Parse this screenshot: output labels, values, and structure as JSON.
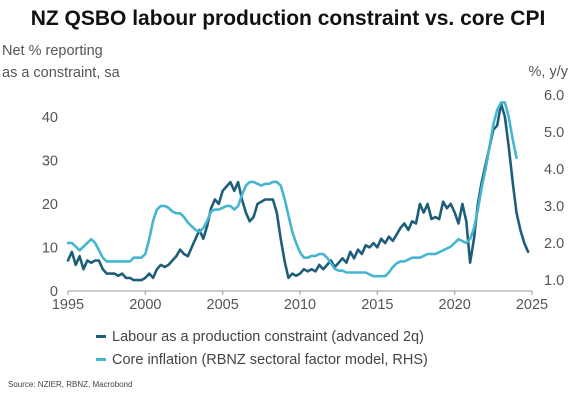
{
  "chart_data": {
    "type": "line",
    "title": "NZ QSBO labour production constraint vs. core CPI",
    "ylabel_left": [
      "Net % reporting",
      "as a constraint, sa"
    ],
    "ylabel_right": "%, y/y",
    "x_ticks": [
      "1995",
      "2000",
      "2005",
      "2010",
      "2015",
      "2020",
      "2025"
    ],
    "y_left_ticks": [
      "0",
      "10",
      "20",
      "30",
      "40"
    ],
    "y_right_ticks": [
      "1.0",
      "2.0",
      "3.0",
      "4.0",
      "5.0",
      "6.0"
    ],
    "xlim": [
      1995,
      2025
    ],
    "ylim_left": [
      0,
      45
    ],
    "ylim_right": [
      0.7,
      6.0
    ],
    "grid": false,
    "legend_position": "bottom",
    "series": [
      {
        "name": "Labour as a production constraint (advanced 2q)",
        "color": "#1f5e7a",
        "axis": "left",
        "points": [
          [
            1995.0,
            7
          ],
          [
            1995.25,
            9
          ],
          [
            1995.5,
            6
          ],
          [
            1995.75,
            8
          ],
          [
            1996.0,
            5
          ],
          [
            1996.25,
            7
          ],
          [
            1996.5,
            6.5
          ],
          [
            1996.75,
            7
          ],
          [
            1997.0,
            7
          ],
          [
            1997.25,
            5
          ],
          [
            1997.5,
            4
          ],
          [
            1997.75,
            4
          ],
          [
            1998.0,
            4
          ],
          [
            1998.25,
            3.5
          ],
          [
            1998.5,
            4
          ],
          [
            1998.75,
            3
          ],
          [
            1999.0,
            3
          ],
          [
            1999.25,
            2.5
          ],
          [
            1999.5,
            2.5
          ],
          [
            1999.75,
            2.5
          ],
          [
            2000.0,
            3
          ],
          [
            2000.25,
            4
          ],
          [
            2000.5,
            3
          ],
          [
            2000.75,
            5
          ],
          [
            2001.0,
            6
          ],
          [
            2001.25,
            5.5
          ],
          [
            2001.5,
            6
          ],
          [
            2001.75,
            7
          ],
          [
            2002.0,
            8
          ],
          [
            2002.25,
            9.5
          ],
          [
            2002.5,
            8.5
          ],
          [
            2002.75,
            8
          ],
          [
            2003.0,
            10
          ],
          [
            2003.25,
            12
          ],
          [
            2003.5,
            14
          ],
          [
            2003.75,
            12
          ],
          [
            2004.0,
            15
          ],
          [
            2004.25,
            19
          ],
          [
            2004.5,
            21
          ],
          [
            2004.75,
            20
          ],
          [
            2005.0,
            23
          ],
          [
            2005.25,
            24
          ],
          [
            2005.5,
            25
          ],
          [
            2005.75,
            23
          ],
          [
            2006.0,
            25
          ],
          [
            2006.25,
            21
          ],
          [
            2006.5,
            18
          ],
          [
            2006.75,
            16
          ],
          [
            2007.0,
            17
          ],
          [
            2007.25,
            20
          ],
          [
            2007.5,
            20.5
          ],
          [
            2007.75,
            21
          ],
          [
            2008.0,
            21
          ],
          [
            2008.25,
            21
          ],
          [
            2008.5,
            18
          ],
          [
            2008.75,
            12
          ],
          [
            2009.0,
            7
          ],
          [
            2009.25,
            3
          ],
          [
            2009.5,
            4
          ],
          [
            2009.75,
            3.5
          ],
          [
            2010.0,
            4
          ],
          [
            2010.25,
            5
          ],
          [
            2010.5,
            4.5
          ],
          [
            2010.75,
            5
          ],
          [
            2011.0,
            4.5
          ],
          [
            2011.25,
            6
          ],
          [
            2011.5,
            5
          ],
          [
            2011.75,
            6
          ],
          [
            2012.0,
            7
          ],
          [
            2012.25,
            5.5
          ],
          [
            2012.5,
            6.5
          ],
          [
            2012.75,
            7.5
          ],
          [
            2013.0,
            6.5
          ],
          [
            2013.25,
            9
          ],
          [
            2013.5,
            7.5
          ],
          [
            2013.75,
            9.5
          ],
          [
            2014.0,
            8.5
          ],
          [
            2014.25,
            10.5
          ],
          [
            2014.5,
            10
          ],
          [
            2014.75,
            11
          ],
          [
            2015.0,
            10
          ],
          [
            2015.25,
            12
          ],
          [
            2015.5,
            11
          ],
          [
            2015.75,
            12.5
          ],
          [
            2016.0,
            11.5
          ],
          [
            2016.25,
            13
          ],
          [
            2016.5,
            14.5
          ],
          [
            2016.75,
            15.5
          ],
          [
            2017.0,
            14
          ],
          [
            2017.25,
            16
          ],
          [
            2017.5,
            15.5
          ],
          [
            2017.75,
            20
          ],
          [
            2018.0,
            18
          ],
          [
            2018.25,
            20
          ],
          [
            2018.5,
            16.5
          ],
          [
            2018.75,
            17
          ],
          [
            2019.0,
            16.5
          ],
          [
            2019.25,
            20.5
          ],
          [
            2019.5,
            19
          ],
          [
            2019.75,
            20
          ],
          [
            2020.0,
            18
          ],
          [
            2020.25,
            15.5
          ],
          [
            2020.5,
            20
          ],
          [
            2020.75,
            16
          ],
          [
            2021.0,
            6.5
          ],
          [
            2021.25,
            12
          ],
          [
            2021.5,
            20
          ],
          [
            2021.75,
            25
          ],
          [
            2022.0,
            29
          ],
          [
            2022.25,
            33
          ],
          [
            2022.5,
            37
          ],
          [
            2022.75,
            38
          ],
          [
            2023.0,
            43
          ],
          [
            2023.25,
            40
          ],
          [
            2023.5,
            33
          ],
          [
            2023.75,
            25
          ],
          [
            2024.0,
            18
          ],
          [
            2024.25,
            14
          ],
          [
            2024.5,
            11
          ],
          [
            2024.75,
            9
          ]
        ]
      },
      {
        "name": "Core inflation (RBNZ sectoral factor model, RHS)",
        "color": "#46b5cf",
        "axis": "right",
        "points": [
          [
            1995.0,
            2.0
          ],
          [
            1995.25,
            2.0
          ],
          [
            1995.5,
            1.9
          ],
          [
            1995.75,
            1.8
          ],
          [
            1996.0,
            1.9
          ],
          [
            1996.25,
            2.0
          ],
          [
            1996.5,
            2.1
          ],
          [
            1996.75,
            2.0
          ],
          [
            1997.0,
            1.8
          ],
          [
            1997.25,
            1.6
          ],
          [
            1997.5,
            1.5
          ],
          [
            1997.75,
            1.5
          ],
          [
            1998.0,
            1.5
          ],
          [
            1998.25,
            1.5
          ],
          [
            1998.5,
            1.5
          ],
          [
            1998.75,
            1.5
          ],
          [
            1999.0,
            1.5
          ],
          [
            1999.25,
            1.6
          ],
          [
            1999.5,
            1.6
          ],
          [
            1999.75,
            1.6
          ],
          [
            2000.0,
            1.7
          ],
          [
            2000.25,
            2.1
          ],
          [
            2000.5,
            2.6
          ],
          [
            2000.75,
            2.9
          ],
          [
            2001.0,
            3.0
          ],
          [
            2001.25,
            3.0
          ],
          [
            2001.5,
            2.95
          ],
          [
            2001.75,
            2.85
          ],
          [
            2002.0,
            2.8
          ],
          [
            2002.25,
            2.8
          ],
          [
            2002.5,
            2.7
          ],
          [
            2002.75,
            2.55
          ],
          [
            2003.0,
            2.45
          ],
          [
            2003.25,
            2.35
          ],
          [
            2003.5,
            2.3
          ],
          [
            2003.75,
            2.4
          ],
          [
            2004.0,
            2.6
          ],
          [
            2004.25,
            2.85
          ],
          [
            2004.5,
            2.9
          ],
          [
            2004.75,
            2.9
          ],
          [
            2005.0,
            2.95
          ],
          [
            2005.25,
            3.0
          ],
          [
            2005.5,
            3.0
          ],
          [
            2005.75,
            2.9
          ],
          [
            2006.0,
            3.0
          ],
          [
            2006.25,
            3.3
          ],
          [
            2006.5,
            3.55
          ],
          [
            2006.75,
            3.65
          ],
          [
            2007.0,
            3.65
          ],
          [
            2007.25,
            3.6
          ],
          [
            2007.5,
            3.55
          ],
          [
            2007.75,
            3.6
          ],
          [
            2008.0,
            3.6
          ],
          [
            2008.25,
            3.65
          ],
          [
            2008.5,
            3.65
          ],
          [
            2008.75,
            3.55
          ],
          [
            2009.0,
            3.2
          ],
          [
            2009.25,
            2.75
          ],
          [
            2009.5,
            2.3
          ],
          [
            2009.75,
            2.0
          ],
          [
            2010.0,
            1.75
          ],
          [
            2010.25,
            1.6
          ],
          [
            2010.5,
            1.6
          ],
          [
            2010.75,
            1.65
          ],
          [
            2011.0,
            1.65
          ],
          [
            2011.25,
            1.7
          ],
          [
            2011.5,
            1.7
          ],
          [
            2011.75,
            1.6
          ],
          [
            2012.0,
            1.45
          ],
          [
            2012.25,
            1.3
          ],
          [
            2012.5,
            1.25
          ],
          [
            2012.75,
            1.25
          ],
          [
            2013.0,
            1.2
          ],
          [
            2013.25,
            1.2
          ],
          [
            2013.5,
            1.2
          ],
          [
            2013.75,
            1.2
          ],
          [
            2014.0,
            1.2
          ],
          [
            2014.25,
            1.2
          ],
          [
            2014.5,
            1.15
          ],
          [
            2014.75,
            1.1
          ],
          [
            2015.0,
            1.1
          ],
          [
            2015.25,
            1.1
          ],
          [
            2015.5,
            1.1
          ],
          [
            2015.75,
            1.2
          ],
          [
            2016.0,
            1.35
          ],
          [
            2016.25,
            1.45
          ],
          [
            2016.5,
            1.5
          ],
          [
            2016.75,
            1.5
          ],
          [
            2017.0,
            1.55
          ],
          [
            2017.25,
            1.6
          ],
          [
            2017.5,
            1.6
          ],
          [
            2017.75,
            1.6
          ],
          [
            2018.0,
            1.65
          ],
          [
            2018.25,
            1.7
          ],
          [
            2018.5,
            1.7
          ],
          [
            2018.75,
            1.7
          ],
          [
            2019.0,
            1.75
          ],
          [
            2019.25,
            1.8
          ],
          [
            2019.5,
            1.85
          ],
          [
            2019.75,
            1.9
          ],
          [
            2020.0,
            2.0
          ],
          [
            2020.25,
            2.1
          ],
          [
            2020.5,
            2.05
          ],
          [
            2020.75,
            2.0
          ],
          [
            2021.0,
            2.1
          ],
          [
            2021.25,
            2.4
          ],
          [
            2021.5,
            2.9
          ],
          [
            2021.75,
            3.5
          ],
          [
            2022.0,
            4.0
          ],
          [
            2022.25,
            4.6
          ],
          [
            2022.5,
            5.2
          ],
          [
            2022.75,
            5.6
          ],
          [
            2023.0,
            5.8
          ],
          [
            2023.25,
            5.8
          ],
          [
            2023.5,
            5.4
          ],
          [
            2023.75,
            4.8
          ],
          [
            2024.0,
            4.3
          ]
        ]
      }
    ]
  },
  "source": "Source: NZIER, RBNZ, Macrobond"
}
